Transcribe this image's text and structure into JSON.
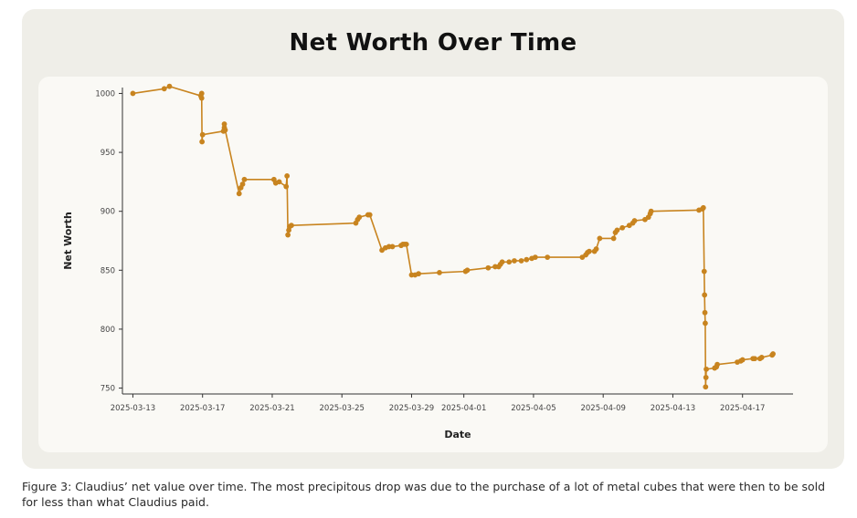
{
  "chart_data": {
    "type": "line",
    "title": "Net Worth Over Time",
    "xlabel": "Date",
    "ylabel": "Net Worth",
    "color": "#c8841f",
    "x_start": "2025-03-12",
    "xlim": [
      0.4,
      38.9
    ],
    "ylim": [
      745,
      1005
    ],
    "x_ticks": [
      {
        "day": 1,
        "label": "2025-03-13"
      },
      {
        "day": 5,
        "label": "2025-03-17"
      },
      {
        "day": 9,
        "label": "2025-03-21"
      },
      {
        "day": 13,
        "label": "2025-03-25"
      },
      {
        "day": 17,
        "label": "2025-03-29"
      },
      {
        "day": 20,
        "label": "2025-04-01"
      },
      {
        "day": 24,
        "label": "2025-04-05"
      },
      {
        "day": 28,
        "label": "2025-04-09"
      },
      {
        "day": 32,
        "label": "2025-04-13"
      },
      {
        "day": 36,
        "label": "2025-04-17"
      }
    ],
    "y_ticks": [
      {
        "value": 750,
        "label": "750"
      },
      {
        "value": 800,
        "label": "800"
      },
      {
        "value": 850,
        "label": "850"
      },
      {
        "value": 900,
        "label": "900"
      },
      {
        "value": 950,
        "label": "950"
      },
      {
        "value": 1000,
        "label": "1000"
      }
    ],
    "points": [
      [
        1.0,
        1000
      ],
      [
        2.8,
        1004
      ],
      [
        3.1,
        1006
      ],
      [
        4.9,
        998
      ],
      [
        4.95,
        1000
      ],
      [
        4.95,
        996
      ],
      [
        4.97,
        959
      ],
      [
        5.0,
        965
      ],
      [
        6.2,
        968
      ],
      [
        6.25,
        974
      ],
      [
        6.25,
        971
      ],
      [
        6.3,
        969
      ],
      [
        7.1,
        915
      ],
      [
        7.2,
        920
      ],
      [
        7.3,
        923
      ],
      [
        7.4,
        927
      ],
      [
        9.1,
        927
      ],
      [
        9.2,
        924
      ],
      [
        9.4,
        925
      ],
      [
        9.8,
        921
      ],
      [
        9.85,
        930
      ],
      [
        9.9,
        880
      ],
      [
        9.95,
        884
      ],
      [
        10.0,
        887
      ],
      [
        10.1,
        888
      ],
      [
        13.8,
        890
      ],
      [
        13.9,
        893
      ],
      [
        14.0,
        895
      ],
      [
        14.5,
        897
      ],
      [
        14.6,
        897
      ],
      [
        15.3,
        867
      ],
      [
        15.5,
        869
      ],
      [
        15.7,
        870
      ],
      [
        15.9,
        870
      ],
      [
        16.4,
        871
      ],
      [
        16.5,
        872
      ],
      [
        16.6,
        872
      ],
      [
        16.7,
        872
      ],
      [
        17.0,
        846
      ],
      [
        17.2,
        846
      ],
      [
        17.4,
        847
      ],
      [
        18.6,
        848
      ],
      [
        20.1,
        849
      ],
      [
        20.2,
        850
      ],
      [
        21.4,
        852
      ],
      [
        21.8,
        853
      ],
      [
        22.0,
        853
      ],
      [
        22.1,
        855
      ],
      [
        22.2,
        857
      ],
      [
        22.6,
        857
      ],
      [
        22.9,
        858
      ],
      [
        23.3,
        858
      ],
      [
        23.6,
        859
      ],
      [
        23.9,
        860
      ],
      [
        24.1,
        861
      ],
      [
        24.8,
        861
      ],
      [
        26.8,
        861
      ],
      [
        27.0,
        863
      ],
      [
        27.1,
        865
      ],
      [
        27.2,
        866
      ],
      [
        27.5,
        866
      ],
      [
        27.6,
        868
      ],
      [
        27.8,
        877
      ],
      [
        28.6,
        877
      ],
      [
        28.7,
        882
      ],
      [
        28.8,
        884
      ],
      [
        29.1,
        886
      ],
      [
        29.5,
        888
      ],
      [
        29.7,
        890
      ],
      [
        29.8,
        892
      ],
      [
        30.4,
        893
      ],
      [
        30.6,
        895
      ],
      [
        30.7,
        898
      ],
      [
        30.75,
        900
      ],
      [
        33.5,
        901
      ],
      [
        33.7,
        902
      ],
      [
        33.75,
        903
      ],
      [
        33.8,
        849
      ],
      [
        33.82,
        829
      ],
      [
        33.84,
        814
      ],
      [
        33.86,
        805
      ],
      [
        33.88,
        751
      ],
      [
        33.9,
        759
      ],
      [
        33.92,
        766
      ],
      [
        34.4,
        767
      ],
      [
        34.5,
        768
      ],
      [
        34.55,
        770
      ],
      [
        35.7,
        772
      ],
      [
        35.9,
        773
      ],
      [
        36.0,
        774
      ],
      [
        36.6,
        775
      ],
      [
        36.7,
        775
      ],
      [
        37.0,
        775
      ],
      [
        37.1,
        776
      ],
      [
        37.7,
        778
      ],
      [
        37.75,
        779
      ]
    ]
  },
  "caption": "Figure 3: Claudius’ net value over time. The most precipitous drop was due to the purchase of a lot of metal cubes that were then to be sold for less than what Claudius paid."
}
